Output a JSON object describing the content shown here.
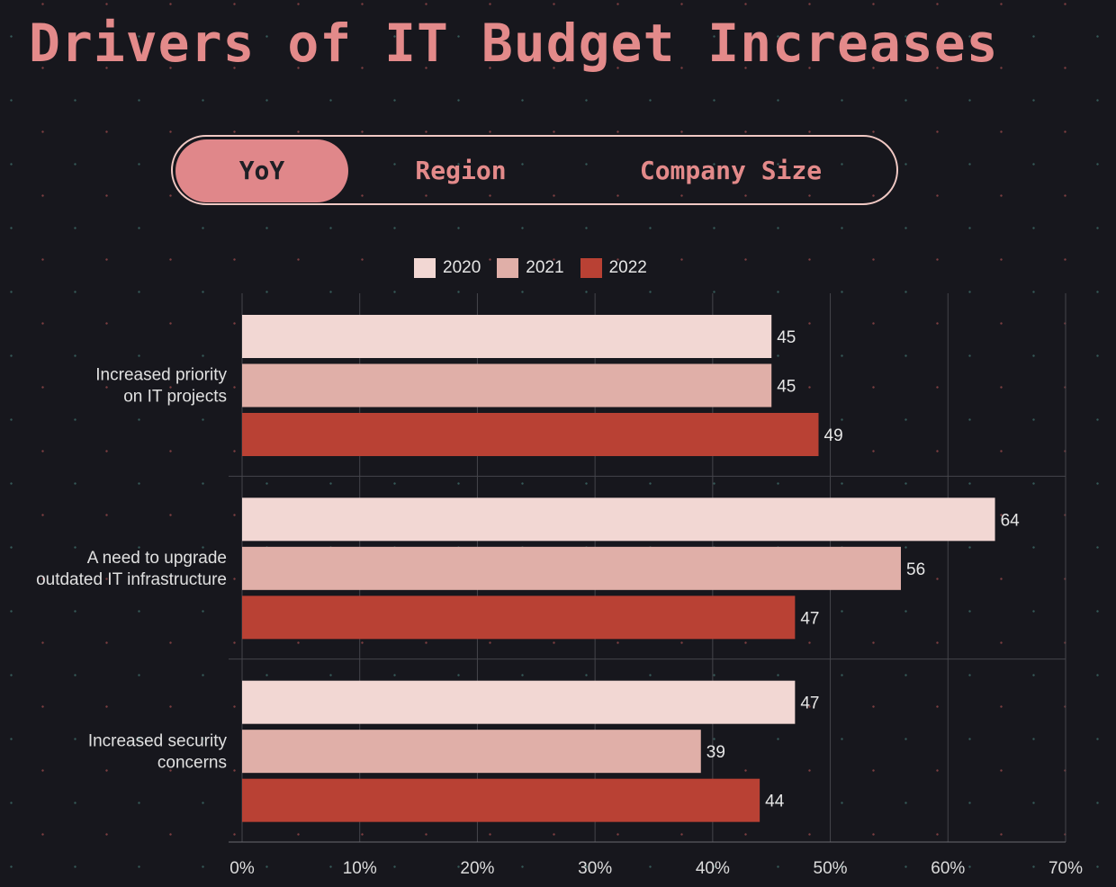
{
  "page": {
    "title": "Drivers of IT Budget Increases"
  },
  "tabs": [
    {
      "label": "YoY",
      "active": true
    },
    {
      "label": "Region",
      "active": false
    },
    {
      "label": "Company Size",
      "active": false
    }
  ],
  "colors": {
    "accent": "#e38a8a",
    "background": "#17171d",
    "s2020": "#f2d7d3",
    "s2021": "#e0afa8",
    "s2022": "#b94134"
  },
  "chart_data": {
    "type": "bar",
    "orientation": "horizontal",
    "categories": [
      [
        "Increased priority",
        "on IT projects"
      ],
      [
        "A need to upgrade",
        "outdated IT infrastructure"
      ],
      [
        "Increased security",
        "concerns"
      ]
    ],
    "series": [
      {
        "name": "2020",
        "color": "#f2d7d3",
        "values": [
          45,
          64,
          47
        ]
      },
      {
        "name": "2021",
        "color": "#e0afa8",
        "values": [
          45,
          56,
          39
        ]
      },
      {
        "name": "2022",
        "color": "#b94134",
        "values": [
          49,
          47,
          44
        ]
      }
    ],
    "xlim": [
      0,
      70
    ],
    "xticks": [
      0,
      10,
      20,
      30,
      40,
      50,
      60,
      70
    ],
    "tick_suffix": "%",
    "grid": true,
    "legend": "top-center",
    "data_labels": true
  }
}
